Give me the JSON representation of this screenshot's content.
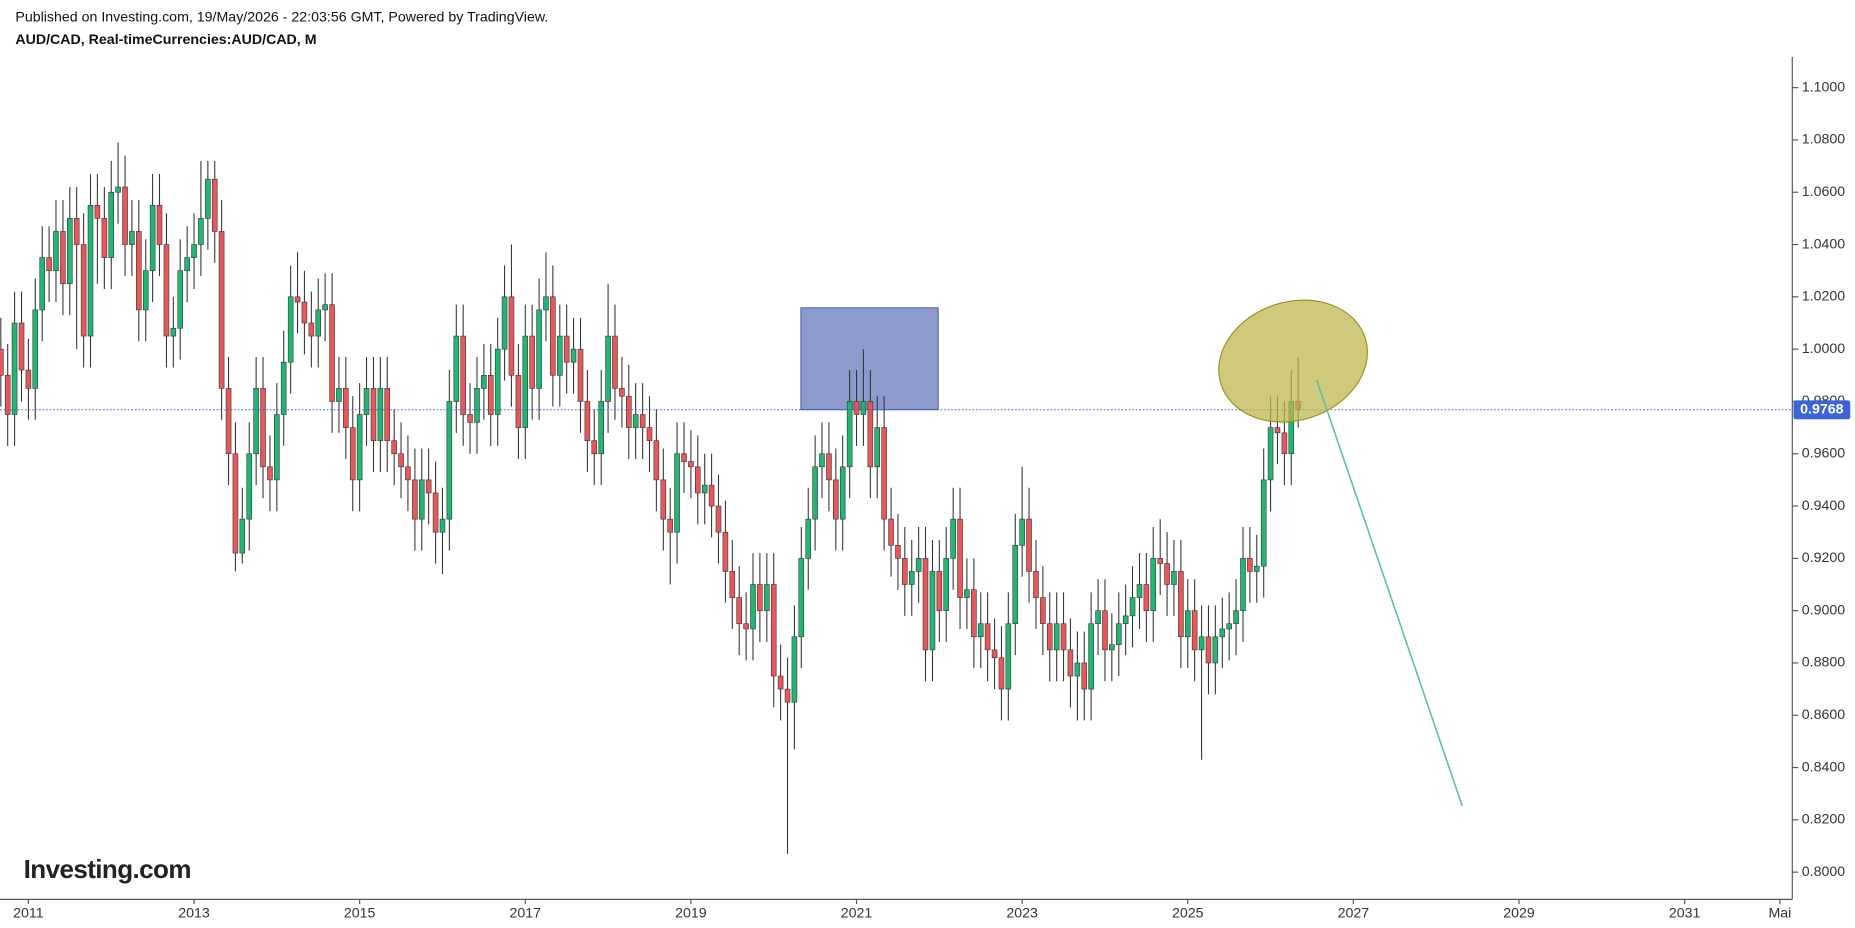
{
  "chart_data": {
    "type": "candlestick",
    "subtitle": "Published on Investing.com, 19/May/2026 - 22:03:56 GMT, Powered by TradingView.",
    "title": "AUD/CAD, Real-timeCurrencies:AUD/CAD, M",
    "watermark": "Investing.com",
    "up_color": "#22b573",
    "down_color": "#e8585b",
    "x": [
      2010.667,
      2010.75,
      2010.833,
      2010.917,
      2011,
      2011.083,
      2011.167,
      2011.25,
      2011.333,
      2011.417,
      2011.5,
      2011.583,
      2011.667,
      2011.75,
      2011.833,
      2011.917,
      2012,
      2012.083,
      2012.167,
      2012.25,
      2012.333,
      2012.417,
      2012.5,
      2012.583,
      2012.667,
      2012.75,
      2012.833,
      2012.917,
      2013,
      2013.083,
      2013.167,
      2013.25,
      2013.333,
      2013.417,
      2013.5,
      2013.583,
      2013.667,
      2013.75,
      2013.833,
      2013.917,
      2014,
      2014.083,
      2014.167,
      2014.25,
      2014.333,
      2014.417,
      2014.5,
      2014.583,
      2014.667,
      2014.75,
      2014.833,
      2014.917,
      2015,
      2015.083,
      2015.167,
      2015.25,
      2015.333,
      2015.417,
      2015.5,
      2015.583,
      2015.667,
      2015.75,
      2015.833,
      2015.917,
      2016,
      2016.083,
      2016.167,
      2016.25,
      2016.333,
      2016.417,
      2016.5,
      2016.583,
      2016.667,
      2016.75,
      2016.833,
      2016.917,
      2017,
      2017.083,
      2017.167,
      2017.25,
      2017.333,
      2017.417,
      2017.5,
      2017.583,
      2017.667,
      2017.75,
      2017.833,
      2017.917,
      2018,
      2018.083,
      2018.167,
      2018.25,
      2018.333,
      2018.417,
      2018.5,
      2018.583,
      2018.667,
      2018.75,
      2018.833,
      2018.917,
      2019,
      2019.083,
      2019.167,
      2019.25,
      2019.333,
      2019.417,
      2019.5,
      2019.583,
      2019.667,
      2019.75,
      2019.833,
      2019.917,
      2020,
      2020.083,
      2020.167,
      2020.25,
      2020.333,
      2020.417,
      2020.5,
      2020.583,
      2020.667,
      2020.75,
      2020.833,
      2020.917,
      2021,
      2021.083,
      2021.167,
      2021.25,
      2021.333,
      2021.417,
      2021.5,
      2021.583,
      2021.667,
      2021.75,
      2021.833,
      2021.917,
      2022,
      2022.083,
      2022.167,
      2022.25,
      2022.333,
      2022.417,
      2022.5,
      2022.583,
      2022.667,
      2022.75,
      2022.833,
      2022.917,
      2023,
      2023.083,
      2023.167,
      2023.25,
      2023.333,
      2023.417,
      2023.5,
      2023.583,
      2023.667,
      2023.75,
      2023.833,
      2023.917,
      2024,
      2024.083,
      2024.167,
      2024.25,
      2024.333,
      2024.417,
      2024.5,
      2024.583,
      2024.667,
      2024.75,
      2024.833,
      2024.917,
      2025,
      2025.083,
      2025.167,
      2025.25,
      2025.333,
      2025.417,
      2025.5,
      2025.583,
      2025.667,
      2025.75,
      2025.833,
      2025.917,
      2026,
      2026.083,
      2026.167,
      2026.25,
      2026.333
    ],
    "open": [
      1.0,
      0.99,
      0.975,
      1.01,
      0.992,
      0.985,
      1.015,
      1.035,
      1.03,
      1.045,
      1.025,
      1.05,
      1.04,
      1.005,
      1.055,
      1.05,
      1.035,
      1.06,
      1.062,
      1.04,
      1.045,
      1.015,
      1.03,
      1.055,
      1.04,
      1.005,
      1.008,
      1.03,
      1.035,
      1.04,
      1.05,
      1.065,
      1.045,
      0.985,
      0.96,
      0.922,
      0.935,
      0.96,
      0.985,
      0.955,
      0.95,
      0.975,
      0.995,
      1.02,
      1.018,
      1.01,
      1.005,
      1.015,
      1.017,
      0.98,
      0.985,
      0.97,
      0.95,
      0.975,
      0.985,
      0.965,
      0.985,
      0.965,
      0.96,
      0.955,
      0.95,
      0.935,
      0.95,
      0.945,
      0.93,
      0.935,
      0.98,
      1.005,
      0.975,
      0.972,
      0.985,
      0.99,
      0.975,
      1.0,
      1.02,
      0.99,
      0.97,
      1.005,
      0.985,
      1.015,
      1.02,
      0.99,
      1.005,
      0.995,
      1.0,
      0.98,
      0.965,
      0.96,
      0.98,
      1.005,
      0.985,
      0.982,
      0.97,
      0.975,
      0.97,
      0.965,
      0.95,
      0.935,
      0.93,
      0.96,
      0.957,
      0.955,
      0.945,
      0.948,
      0.94,
      0.93,
      0.915,
      0.905,
      0.895,
      0.893,
      0.91,
      0.9,
      0.91,
      0.875,
      0.87,
      0.865,
      0.89,
      0.92,
      0.935,
      0.955,
      0.96,
      0.95,
      0.935,
      0.955,
      0.98,
      0.975,
      0.98,
      0.955,
      0.97,
      0.935,
      0.925,
      0.92,
      0.91,
      0.915,
      0.92,
      0.885,
      0.915,
      0.9,
      0.92,
      0.935,
      0.905,
      0.908,
      0.89,
      0.895,
      0.885,
      0.882,
      0.87,
      0.895,
      0.925,
      0.935,
      0.915,
      0.905,
      0.895,
      0.885,
      0.895,
      0.885,
      0.875,
      0.88,
      0.87,
      0.895,
      0.9,
      0.885,
      0.887,
      0.895,
      0.898,
      0.905,
      0.91,
      0.9,
      0.92,
      0.918,
      0.91,
      0.915,
      0.89,
      0.9,
      0.885,
      0.89,
      0.88,
      0.89,
      0.893,
      0.895,
      0.9,
      0.92,
      0.915,
      0.917,
      0.95,
      0.97,
      0.968,
      0.96,
      0.98
    ],
    "high": [
      1.012,
      1.002,
      1.022,
      1.022,
      1.004,
      1.027,
      1.047,
      1.047,
      1.057,
      1.057,
      1.062,
      1.062,
      1.052,
      1.067,
      1.067,
      1.062,
      1.072,
      1.079,
      1.074,
      1.057,
      1.057,
      1.042,
      1.067,
      1.067,
      1.052,
      1.02,
      1.042,
      1.047,
      1.052,
      1.072,
      1.072,
      1.072,
      1.057,
      0.997,
      0.972,
      0.947,
      0.972,
      0.997,
      0.997,
      0.967,
      0.987,
      1.007,
      1.032,
      1.037,
      1.03,
      1.022,
      1.027,
      1.029,
      1.029,
      0.997,
      0.997,
      0.982,
      0.987,
      0.997,
      0.997,
      0.997,
      0.997,
      0.977,
      0.972,
      0.967,
      0.962,
      0.962,
      0.962,
      0.957,
      0.947,
      0.992,
      1.017,
      1.017,
      0.987,
      0.997,
      1.002,
      1.002,
      1.012,
      1.032,
      1.04,
      1.002,
      1.017,
      1.017,
      1.027,
      1.037,
      1.032,
      1.017,
      1.017,
      1.012,
      1.012,
      0.992,
      0.977,
      0.992,
      1.025,
      1.017,
      0.997,
      0.994,
      0.987,
      0.987,
      0.982,
      0.977,
      0.962,
      0.947,
      0.972,
      0.972,
      0.969,
      0.967,
      0.96,
      0.96,
      0.952,
      0.942,
      0.927,
      0.917,
      0.907,
      0.922,
      0.922,
      0.922,
      0.922,
      0.887,
      0.882,
      0.902,
      0.932,
      0.947,
      0.967,
      0.972,
      0.972,
      0.962,
      0.967,
      0.992,
      0.992,
      1.0,
      0.992,
      0.982,
      0.982,
      0.947,
      0.937,
      0.932,
      0.927,
      0.932,
      0.932,
      0.927,
      0.927,
      0.932,
      0.947,
      0.947,
      0.92,
      0.92,
      0.907,
      0.907,
      0.897,
      0.894,
      0.907,
      0.937,
      0.955,
      0.947,
      0.927,
      0.917,
      0.907,
      0.907,
      0.907,
      0.897,
      0.892,
      0.892,
      0.907,
      0.912,
      0.912,
      0.899,
      0.907,
      0.91,
      0.917,
      0.922,
      0.922,
      0.932,
      0.935,
      0.93,
      0.927,
      0.927,
      0.912,
      0.912,
      0.902,
      0.902,
      0.902,
      0.905,
      0.907,
      0.912,
      0.932,
      0.932,
      0.929,
      0.962,
      0.982,
      0.982,
      0.98,
      0.992,
      0.997
    ],
    "low": [
      0.978,
      0.963,
      0.963,
      0.98,
      0.973,
      0.973,
      1.003,
      1.018,
      1.018,
      1.013,
      1.013,
      1.0,
      0.993,
      0.993,
      1.025,
      1.023,
      1.023,
      1.048,
      1.028,
      1.028,
      1.003,
      1.003,
      1.018,
      1.028,
      0.993,
      0.993,
      0.996,
      1.018,
      1.023,
      1.028,
      1.038,
      1.033,
      0.973,
      0.948,
      0.915,
      0.918,
      0.923,
      0.948,
      0.943,
      0.938,
      0.938,
      0.963,
      0.983,
      1.006,
      0.998,
      0.993,
      0.993,
      1.003,
      0.968,
      0.968,
      0.958,
      0.938,
      0.938,
      0.963,
      0.953,
      0.953,
      0.953,
      0.948,
      0.943,
      0.938,
      0.923,
      0.923,
      0.933,
      0.918,
      0.914,
      0.923,
      0.968,
      0.963,
      0.96,
      0.96,
      0.973,
      0.963,
      0.963,
      0.988,
      0.978,
      0.958,
      0.958,
      0.973,
      0.973,
      1.003,
      0.978,
      0.978,
      0.983,
      0.983,
      0.968,
      0.953,
      0.948,
      0.948,
      0.968,
      0.973,
      0.97,
      0.958,
      0.958,
      0.958,
      0.953,
      0.938,
      0.923,
      0.91,
      0.918,
      0.945,
      0.943,
      0.933,
      0.933,
      0.928,
      0.918,
      0.903,
      0.893,
      0.883,
      0.881,
      0.881,
      0.888,
      0.888,
      0.863,
      0.858,
      0.807,
      0.847,
      0.878,
      0.908,
      0.923,
      0.943,
      0.938,
      0.923,
      0.923,
      0.943,
      0.963,
      0.963,
      0.943,
      0.943,
      0.923,
      0.913,
      0.908,
      0.898,
      0.898,
      0.903,
      0.873,
      0.873,
      0.888,
      0.888,
      0.908,
      0.893,
      0.893,
      0.878,
      0.878,
      0.873,
      0.87,
      0.858,
      0.858,
      0.883,
      0.913,
      0.903,
      0.893,
      0.883,
      0.873,
      0.873,
      0.873,
      0.863,
      0.858,
      0.858,
      0.858,
      0.883,
      0.873,
      0.873,
      0.875,
      0.883,
      0.886,
      0.893,
      0.888,
      0.888,
      0.906,
      0.898,
      0.898,
      0.878,
      0.878,
      0.873,
      0.843,
      0.868,
      0.868,
      0.878,
      0.881,
      0.883,
      0.888,
      0.903,
      0.903,
      0.905,
      0.938,
      0.956,
      0.948,
      0.948,
      0.97
    ],
    "close": [
      0.99,
      0.975,
      1.01,
      0.992,
      0.985,
      1.015,
      1.035,
      1.03,
      1.045,
      1.025,
      1.05,
      1.04,
      1.005,
      1.055,
      1.05,
      1.035,
      1.06,
      1.062,
      1.04,
      1.045,
      1.015,
      1.03,
      1.055,
      1.04,
      1.005,
      1.008,
      1.03,
      1.035,
      1.04,
      1.05,
      1.065,
      1.045,
      0.985,
      0.96,
      0.922,
      0.935,
      0.96,
      0.985,
      0.955,
      0.95,
      0.975,
      0.995,
      1.02,
      1.018,
      1.01,
      1.005,
      1.015,
      1.017,
      0.98,
      0.985,
      0.97,
      0.95,
      0.975,
      0.985,
      0.965,
      0.985,
      0.965,
      0.96,
      0.955,
      0.95,
      0.935,
      0.95,
      0.945,
      0.93,
      0.935,
      0.98,
      1.005,
      0.975,
      0.972,
      0.985,
      0.99,
      0.975,
      1.0,
      1.02,
      0.99,
      0.97,
      1.005,
      0.985,
      1.015,
      1.02,
      0.99,
      1.005,
      0.995,
      1.0,
      0.98,
      0.965,
      0.96,
      0.98,
      1.005,
      0.985,
      0.982,
      0.97,
      0.975,
      0.97,
      0.965,
      0.95,
      0.935,
      0.93,
      0.96,
      0.957,
      0.955,
      0.945,
      0.948,
      0.94,
      0.93,
      0.915,
      0.905,
      0.895,
      0.893,
      0.91,
      0.9,
      0.91,
      0.875,
      0.87,
      0.865,
      0.89,
      0.92,
      0.935,
      0.955,
      0.96,
      0.95,
      0.935,
      0.955,
      0.98,
      0.975,
      0.98,
      0.955,
      0.97,
      0.935,
      0.925,
      0.92,
      0.91,
      0.915,
      0.92,
      0.885,
      0.915,
      0.9,
      0.92,
      0.935,
      0.905,
      0.908,
      0.89,
      0.895,
      0.885,
      0.882,
      0.87,
      0.895,
      0.925,
      0.935,
      0.915,
      0.905,
      0.895,
      0.885,
      0.895,
      0.885,
      0.875,
      0.88,
      0.87,
      0.895,
      0.9,
      0.885,
      0.887,
      0.895,
      0.898,
      0.905,
      0.91,
      0.9,
      0.92,
      0.918,
      0.91,
      0.915,
      0.89,
      0.9,
      0.885,
      0.89,
      0.88,
      0.89,
      0.893,
      0.895,
      0.9,
      0.92,
      0.915,
      0.917,
      0.95,
      0.97,
      0.968,
      0.96,
      0.98,
      0.9768
    ],
    "last_price": 0.9768,
    "xlim": [
      2010.657,
      2032.3
    ],
    "xticks": [
      2011,
      2013,
      2015,
      2017,
      2019,
      2021,
      2023,
      2025,
      2027,
      2029,
      2031,
      {
        "value": 2032.15,
        "label": "Mai"
      }
    ],
    "ylim": [
      0.7896,
      1.1117
    ],
    "yticks": [
      {
        "value": 0.8,
        "label": "0.8000"
      },
      {
        "value": 0.82,
        "label": "0.8200"
      },
      {
        "value": 0.84,
        "label": "0.8400"
      },
      {
        "value": 0.86,
        "label": "0.8600"
      },
      {
        "value": 0.88,
        "label": "0.8800"
      },
      {
        "value": 0.9,
        "label": "0.9000"
      },
      {
        "value": 0.92,
        "label": "0.9200"
      },
      {
        "value": 0.94,
        "label": "0.9400"
      },
      {
        "value": 0.96,
        "label": "0.9600"
      },
      {
        "value": 0.98,
        "label": "0.9800"
      },
      {
        "value": 1.0,
        "label": "1.0000"
      },
      {
        "value": 1.02,
        "label": "1.0200"
      },
      {
        "value": 1.04,
        "label": "1.0400"
      },
      {
        "value": 1.06,
        "label": "1.0600"
      },
      {
        "value": 1.08,
        "label": "1.0800"
      },
      {
        "value": 1.1,
        "label": "1.1000"
      }
    ]
  }
}
